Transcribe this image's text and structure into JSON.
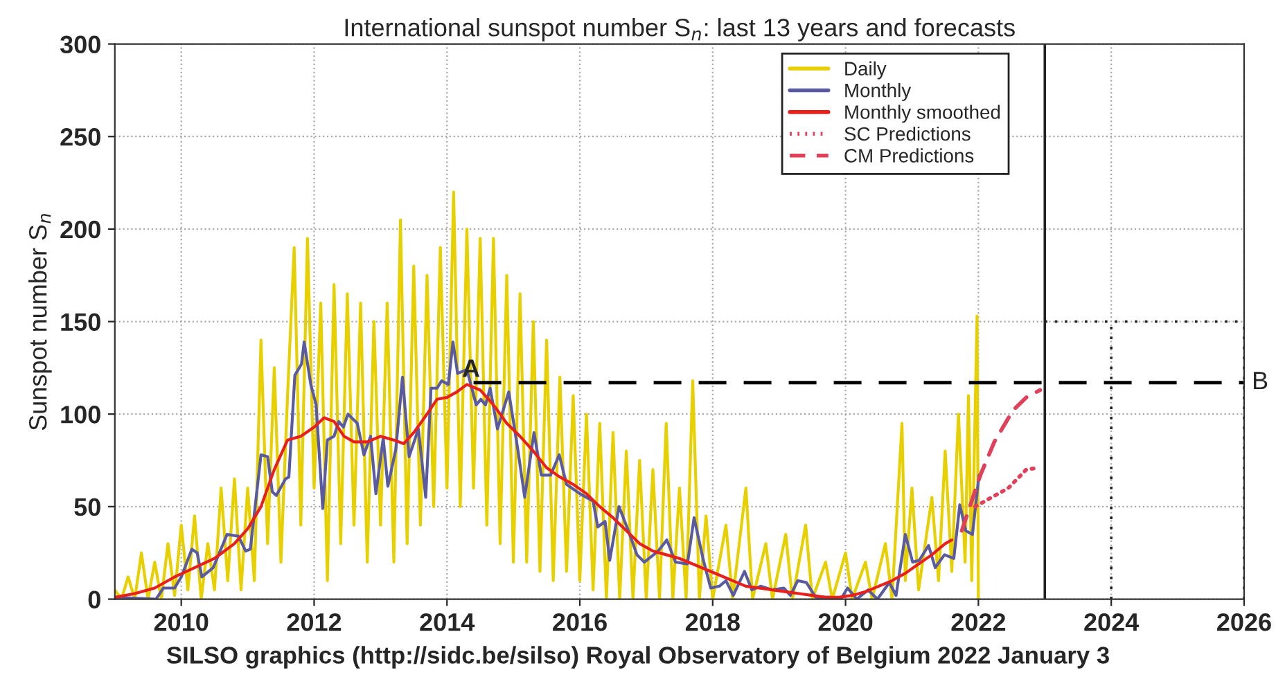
{
  "chart_data": {
    "type": "line",
    "title": "International sunspot number S$_{n}$: last 13 years and forecasts",
    "ylabel": "Sunspot number S$_{n}$",
    "xlim": [
      2009,
      2026
    ],
    "xticks": [
      2010,
      2012,
      2014,
      2016,
      2018,
      2020,
      2022,
      2024,
      2026
    ],
    "ylim": [
      0,
      300
    ],
    "yticks": [
      0,
      50,
      100,
      150,
      200,
      250,
      300
    ],
    "grid": true,
    "legend": "top right",
    "ref_lines": [
      {
        "axis": "y",
        "value": 117,
        "label": "B",
        "color": "#000000",
        "line_style": "dashed"
      },
      {
        "axis": "x",
        "value": 2023,
        "color": "#222222",
        "line_style": "solid"
      }
    ],
    "annotations": [
      {
        "text": "A",
        "x": 2014.4,
        "y": 117
      },
      "SILSO graphics (http://sidc.be/silso) Royal Observatory of Belgium 2022 January 3"
    ],
    "series": [
      {
        "name": "Daily",
        "color": "#e8d000",
        "line_style": "solid",
        "x": [
          2009.0,
          2009.1,
          2009.2,
          2009.3,
          2009.4,
          2009.5,
          2009.6,
          2009.7,
          2009.8,
          2009.9,
          2010.0,
          2010.1,
          2010.2,
          2010.3,
          2010.4,
          2010.5,
          2010.6,
          2010.7,
          2010.8,
          2010.9,
          2011.0,
          2011.1,
          2011.2,
          2011.3,
          2011.4,
          2011.5,
          2011.6,
          2011.7,
          2011.8,
          2011.9,
          2012.0,
          2012.1,
          2012.2,
          2012.3,
          2012.4,
          2012.5,
          2012.6,
          2012.7,
          2012.8,
          2012.9,
          2013.0,
          2013.1,
          2013.2,
          2013.3,
          2013.4,
          2013.5,
          2013.6,
          2013.7,
          2013.8,
          2013.9,
          2014.0,
          2014.1,
          2014.2,
          2014.3,
          2014.4,
          2014.5,
          2014.6,
          2014.7,
          2014.8,
          2014.9,
          2015.0,
          2015.1,
          2015.2,
          2015.3,
          2015.4,
          2015.5,
          2015.6,
          2015.7,
          2015.8,
          2015.9,
          2016.0,
          2016.1,
          2016.2,
          2016.3,
          2016.4,
          2016.5,
          2016.6,
          2016.7,
          2016.8,
          2016.9,
          2017.0,
          2017.1,
          2017.2,
          2017.3,
          2017.4,
          2017.5,
          2017.6,
          2017.7,
          2017.8,
          2017.9,
          2018.0,
          2018.2,
          2018.3,
          2018.5,
          2018.6,
          2018.8,
          2018.9,
          2019.1,
          2019.2,
          2019.4,
          2019.5,
          2019.7,
          2019.8,
          2020.0,
          2020.1,
          2020.3,
          2020.4,
          2020.6,
          2020.7,
          2020.85,
          2020.9,
          2021.0,
          2021.1,
          2021.3,
          2021.4,
          2021.5,
          2021.6,
          2021.7,
          2021.8,
          2021.85,
          2021.9,
          2021.98,
          2022.0
        ],
        "values": [
          5,
          0,
          12,
          0,
          25,
          0,
          20,
          0,
          30,
          2,
          40,
          5,
          45,
          0,
          30,
          5,
          60,
          10,
          65,
          5,
          60,
          10,
          140,
          30,
          125,
          20,
          110,
          190,
          40,
          195,
          60,
          160,
          10,
          170,
          30,
          165,
          40,
          160,
          20,
          150,
          40,
          160,
          20,
          205,
          30,
          180,
          40,
          175,
          50,
          190,
          60,
          220,
          50,
          200,
          60,
          195,
          40,
          195,
          30,
          175,
          20,
          165,
          20,
          150,
          15,
          140,
          10,
          120,
          15,
          110,
          10,
          100,
          5,
          95,
          0,
          90,
          0,
          80,
          0,
          75,
          0,
          70,
          0,
          95,
          0,
          60,
          0,
          118,
          0,
          45,
          0,
          40,
          0,
          60,
          0,
          30,
          0,
          35,
          0,
          40,
          0,
          20,
          0,
          25,
          0,
          20,
          0,
          30,
          0,
          95,
          10,
          60,
          5,
          55,
          10,
          80,
          15,
          100,
          20,
          110,
          10,
          153,
          0
        ]
      },
      {
        "name": "Monthly",
        "color": "#5a5aa0",
        "line_style": "solid",
        "x": [
          2009.0,
          2009.62,
          2009.73,
          2009.9,
          2010.0,
          2010.16,
          2010.24,
          2010.31,
          2010.48,
          2010.69,
          2010.86,
          2010.97,
          2011.04,
          2011.2,
          2011.3,
          2011.37,
          2011.43,
          2011.57,
          2011.62,
          2011.71,
          2011.81,
          2011.85,
          2011.95,
          2012.03,
          2012.13,
          2012.2,
          2012.3,
          2012.37,
          2012.44,
          2012.51,
          2012.65,
          2012.75,
          2012.85,
          2012.93,
          2013.04,
          2013.11,
          2013.23,
          2013.33,
          2013.43,
          2013.57,
          2013.68,
          2013.76,
          2013.85,
          2013.92,
          2014.02,
          2014.09,
          2014.16,
          2014.3,
          2014.44,
          2014.51,
          2014.58,
          2014.65,
          2014.76,
          2014.93,
          2015.07,
          2015.17,
          2015.31,
          2015.42,
          2015.56,
          2015.69,
          2015.8,
          2016.0,
          2016.2,
          2016.27,
          2016.38,
          2016.45,
          2016.59,
          2016.73,
          2016.86,
          2016.97,
          2017.18,
          2017.31,
          2017.44,
          2017.62,
          2017.72,
          2017.86,
          2017.97,
          2018.1,
          2018.2,
          2018.31,
          2018.48,
          2018.59,
          2018.72,
          2018.9,
          2019.07,
          2019.17,
          2019.28,
          2019.41,
          2019.55,
          2019.76,
          2019.93,
          2020.03,
          2020.17,
          2020.34,
          2020.48,
          2020.66,
          2020.76,
          2020.9,
          2021.01,
          2021.11,
          2021.25,
          2021.35,
          2021.49,
          2021.63,
          2021.72,
          2021.81,
          2021.91,
          2022.01
        ],
        "values": [
          1,
          0,
          6,
          6,
          12,
          27,
          25,
          12,
          17,
          35,
          34,
          26,
          27,
          78,
          77,
          58,
          56,
          65,
          66,
          121,
          127,
          139,
          116,
          105,
          49,
          86,
          88,
          96,
          93,
          100,
          95,
          78,
          88,
          57,
          87,
          61,
          81,
          120,
          77,
          92,
          55,
          114,
          114,
          118,
          116,
          139,
          122,
          124,
          105,
          108,
          105,
          114,
          92,
          112,
          80,
          55,
          90,
          67,
          67,
          78,
          62,
          57,
          53,
          39,
          42,
          21,
          50,
          37,
          24,
          20,
          26,
          32,
          20,
          19,
          44,
          21,
          6,
          7,
          10,
          2,
          15,
          5,
          7,
          5,
          6,
          2,
          10,
          9,
          1,
          1,
          0,
          6,
          0,
          5,
          0,
          9,
          2,
          35,
          20,
          21,
          29,
          17,
          24,
          22,
          51,
          37,
          35,
          67
        ]
      },
      {
        "name": "Monthly smoothed",
        "color": "#e8201c",
        "line_style": "solid",
        "x": [
          2009.0,
          2009.3,
          2009.6,
          2009.9,
          2010.2,
          2010.5,
          2010.8,
          2011.0,
          2011.2,
          2011.4,
          2011.6,
          2011.8,
          2012.0,
          2012.15,
          2012.3,
          2012.45,
          2012.6,
          2012.8,
          2013.0,
          2013.2,
          2013.35,
          2013.5,
          2013.7,
          2013.85,
          2014.0,
          2014.15,
          2014.3,
          2014.5,
          2014.7,
          2014.9,
          2015.1,
          2015.3,
          2015.5,
          2015.7,
          2015.9,
          2016.1,
          2016.3,
          2016.5,
          2016.7,
          2016.9,
          2017.1,
          2017.3,
          2017.5,
          2017.7,
          2017.9,
          2018.1,
          2018.3,
          2018.5,
          2018.7,
          2018.9,
          2019.1,
          2019.3,
          2019.5,
          2019.7,
          2019.9,
          2020.1,
          2020.3,
          2020.5,
          2020.7,
          2020.9,
          2021.1,
          2021.3,
          2021.5,
          2021.6
        ],
        "values": [
          1,
          3,
          6,
          12,
          17,
          22,
          30,
          38,
          50,
          70,
          86,
          88,
          93,
          98,
          96,
          88,
          85,
          85,
          88,
          86,
          84,
          90,
          100,
          108,
          109,
          112,
          116,
          113,
          105,
          95,
          88,
          80,
          71,
          66,
          62,
          57,
          50,
          44,
          37,
          30,
          26,
          24,
          22,
          19,
          16,
          13,
          10,
          7,
          6,
          5,
          4,
          3,
          2,
          1,
          1,
          2,
          4,
          7,
          10,
          14,
          19,
          24,
          30,
          32
        ]
      },
      {
        "name": "SC Predictions",
        "color": "#e0405a",
        "line_style": "dotted",
        "x": [
          2021.95,
          2022.2,
          2022.45,
          2022.72,
          2022.9
        ],
        "values": [
          50,
          55,
          60,
          70,
          71
        ]
      },
      {
        "name": "CM Predictions",
        "color": "#e0405a",
        "line_style": "dashed",
        "x": [
          2021.75,
          2022.03,
          2022.24,
          2022.52,
          2022.72,
          2022.93
        ],
        "values": [
          37,
          67,
          85,
          102,
          109,
          113
        ]
      }
    ]
  }
}
